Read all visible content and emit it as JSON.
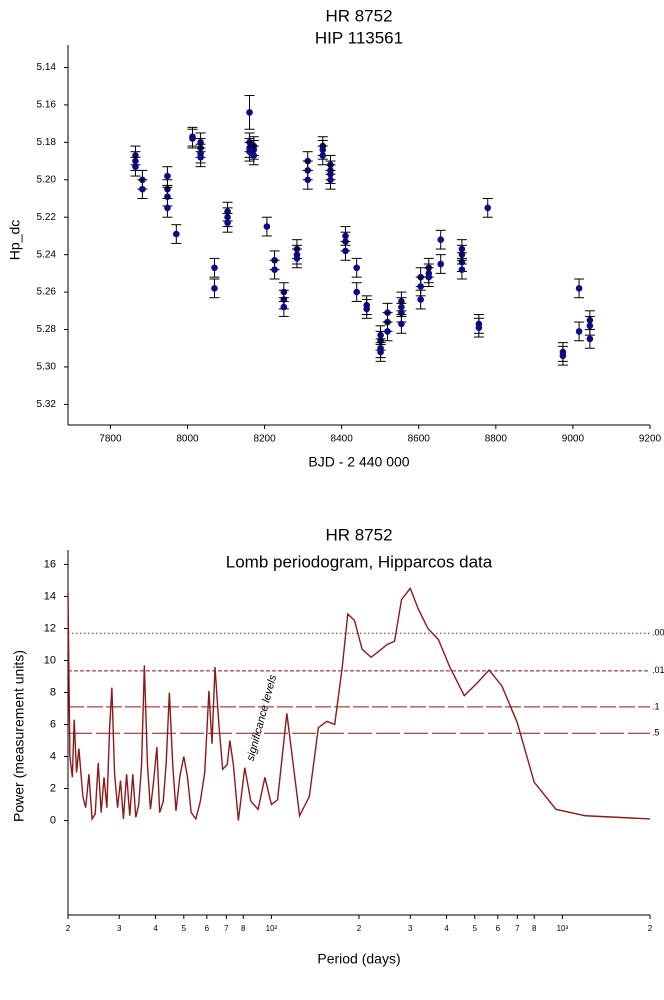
{
  "chart_data": [
    {
      "type": "scatter",
      "title": "HR 8752",
      "subtitle": "HIP 113561",
      "x_label": "BJD - 2 440 000",
      "y_label": "Hp_dc",
      "color": "#0b0b8a",
      "x": [
        7865,
        7865,
        7865,
        7883,
        7883,
        7948,
        7948,
        7948,
        7948,
        7971,
        8013,
        8013,
        8034,
        8034,
        8034,
        8034,
        8070,
        8070,
        8104,
        8104,
        8104,
        8161,
        8161,
        8161,
        8161,
        8172,
        8172,
        8172,
        8206,
        8226,
        8226,
        8250,
        8250,
        8250,
        8284,
        8284,
        8284,
        8312,
        8312,
        8312,
        8351,
        8351,
        8351,
        8371,
        8371,
        8371,
        8371,
        8410,
        8410,
        8410,
        8439,
        8439,
        8465,
        8465,
        8501,
        8501,
        8501,
        8501,
        8519,
        8519,
        8519,
        8555,
        8555,
        8555,
        8555,
        8605,
        8605,
        8605,
        8626,
        8626,
        8626,
        8657,
        8657,
        8712,
        8712,
        8712,
        8712,
        8756,
        8756,
        8779,
        8974,
        8974,
        9016,
        9016,
        9044,
        9044,
        9044
      ],
      "y": [
        5.187,
        5.19,
        5.193,
        5.2,
        5.205,
        5.198,
        5.205,
        5.209,
        5.215,
        5.229,
        5.177,
        5.178,
        5.18,
        5.183,
        5.186,
        5.188,
        5.247,
        5.258,
        5.217,
        5.22,
        5.223,
        5.164,
        5.18,
        5.183,
        5.185,
        5.182,
        5.184,
        5.187,
        5.225,
        5.243,
        5.248,
        5.26,
        5.264,
        5.268,
        5.237,
        5.24,
        5.242,
        5.19,
        5.195,
        5.2,
        5.182,
        5.184,
        5.187,
        5.192,
        5.195,
        5.197,
        5.2,
        5.23,
        5.233,
        5.238,
        5.247,
        5.26,
        5.267,
        5.269,
        5.283,
        5.286,
        5.29,
        5.292,
        5.271,
        5.276,
        5.281,
        5.265,
        5.268,
        5.271,
        5.277,
        5.252,
        5.257,
        5.264,
        5.247,
        5.25,
        5.252,
        5.232,
        5.245,
        5.237,
        5.24,
        5.244,
        5.248,
        5.277,
        5.279,
        5.215,
        5.292,
        5.294,
        5.258,
        5.281,
        5.275,
        5.278,
        5.285
      ],
      "errors": [
        0.005,
        0.005,
        0.005,
        0.005,
        0.005,
        0.005,
        0.005,
        0.005,
        0.005,
        0.005,
        0.005,
        0.005,
        0.005,
        0.005,
        0.005,
        0.005,
        0.005,
        0.005,
        0.005,
        0.005,
        0.005,
        0.009,
        0.005,
        0.005,
        0.005,
        0.005,
        0.005,
        0.005,
        0.005,
        0.005,
        0.005,
        0.005,
        0.005,
        0.005,
        0.005,
        0.005,
        0.005,
        0.005,
        0.005,
        0.005,
        0.005,
        0.005,
        0.005,
        0.005,
        0.005,
        0.005,
        0.005,
        0.005,
        0.005,
        0.005,
        0.005,
        0.005,
        0.005,
        0.005,
        0.005,
        0.005,
        0.005,
        0.005,
        0.005,
        0.005,
        0.005,
        0.005,
        0.005,
        0.005,
        0.005,
        0.005,
        0.005,
        0.005,
        0.005,
        0.005,
        0.005,
        0.005,
        0.005,
        0.005,
        0.005,
        0.005,
        0.005,
        0.005,
        0.005,
        0.005,
        0.005,
        0.005,
        0.005,
        0.005,
        0.005,
        0.005,
        0.005
      ],
      "xlim": [
        7690,
        9200
      ],
      "xticks": [
        7800,
        8000,
        8200,
        8400,
        8600,
        8800,
        9000,
        9200
      ],
      "ylim": [
        5.331,
        5.128
      ],
      "yticks": [
        5.14,
        5.16,
        5.18,
        {
          "value": 5.2,
          "label": "5.20"
        },
        5.22,
        5.24,
        5.26,
        5.28,
        {
          "value": 5.3,
          "label": "5.30"
        },
        5.32
      ]
    },
    {
      "type": "line",
      "title": "HR 8752",
      "subtitle": "Lomb periodogram, Hipparcos data",
      "x_label": "Period (days)",
      "y_label": "Power (measurement units)",
      "color": "#8b1a1a",
      "xscale": "log",
      "x": [
        20.0,
        20.3,
        20.7,
        21.0,
        21.4,
        21.8,
        22.5,
        23.0,
        23.6,
        24.2,
        24.8,
        25.4,
        26.0,
        26.6,
        27.2,
        27.8,
        28.3,
        28.9,
        29.6,
        30.3,
        31.0,
        31.8,
        32.6,
        33.4,
        34.2,
        35.0,
        35.8,
        36.6,
        37.5,
        38.4,
        39.4,
        40.4,
        41.3,
        42.5,
        43.5,
        44.6,
        45.8,
        47.0,
        48.5,
        50.0,
        51.5,
        53.0,
        55.0,
        57.0,
        59.0,
        61.0,
        62.5,
        64.0,
        66.0,
        68.0,
        70.5,
        72.0,
        74.0,
        77.0,
        81.0,
        85.0,
        90.0,
        95.0,
        100.0,
        105.0,
        113.0,
        125.0,
        135.0,
        145.0,
        155.0,
        165.0,
        175.0,
        183.0,
        193.0,
        205.0,
        220.0,
        235.0,
        250.0,
        265.0,
        280.0,
        300.0,
        320.0,
        345.0,
        375.0,
        410.0,
        460.0,
        510.0,
        560.0,
        620.0,
        700.0,
        800.0,
        950.0,
        1200.0,
        2000.0
      ],
      "values": [
        14.2,
        4.0,
        2.7,
        6.3,
        3.0,
        4.5,
        1.5,
        0.8,
        2.9,
        0.1,
        0.4,
        3.6,
        0.5,
        2.7,
        0.8,
        5.8,
        8.3,
        3.0,
        0.8,
        2.5,
        0.1,
        2.9,
        0.3,
        2.9,
        0.2,
        1.0,
        3.5,
        9.7,
        3.5,
        0.7,
        2.5,
        4.6,
        0.5,
        1.2,
        3.6,
        8.0,
        3.5,
        0.6,
        2.8,
        4.0,
        2.7,
        0.5,
        0.1,
        1.2,
        3.0,
        8.1,
        4.8,
        9.6,
        6.0,
        3.2,
        3.5,
        5.0,
        3.5,
        0.0,
        3.3,
        1.2,
        0.7,
        2.7,
        1.0,
        1.3,
        6.7,
        0.3,
        1.5,
        5.8,
        6.2,
        6.0,
        9.5,
        12.9,
        12.5,
        10.7,
        10.2,
        10.6,
        11.0,
        11.2,
        13.8,
        14.5,
        13.2,
        12.0,
        11.3,
        9.6,
        7.8,
        8.6,
        9.4,
        8.4,
        6.1,
        2.4,
        0.7,
        0.3,
        0.1
      ],
      "xlim": [
        20,
        2000
      ],
      "xticks": [
        {
          "value": 20,
          "label": "2"
        },
        {
          "value": 30,
          "label": "3"
        },
        {
          "value": 40,
          "label": "4"
        },
        {
          "value": 50,
          "label": "5"
        },
        {
          "value": 60,
          "label": "6"
        },
        {
          "value": 70,
          "label": "7"
        },
        {
          "value": 80,
          "label": "8"
        },
        {
          "value": 100,
          "label": "10²"
        },
        {
          "value": 200,
          "label": "2"
        },
        {
          "value": 300,
          "label": "3"
        },
        {
          "value": 400,
          "label": "4"
        },
        {
          "value": 500,
          "label": "5"
        },
        {
          "value": 600,
          "label": "6"
        },
        {
          "value": 700,
          "label": "7"
        },
        {
          "value": 800,
          "label": "8"
        },
        {
          "value": 1000,
          "label": "10³"
        },
        {
          "value": 2000,
          "label": "2"
        }
      ],
      "ylim": [
        -5.9,
        16.9
      ],
      "yticks": [
        0,
        2,
        4,
        6,
        8,
        10,
        12,
        14,
        16
      ],
      "levels": [
        {
          "value": 11.7,
          "label": ".00",
          "dash": "dotted"
        },
        {
          "value": 9.35,
          "label": ".01",
          "dash": "short"
        },
        {
          "value": 7.1,
          "label": ".1",
          "dash": "long"
        },
        {
          "value": 5.45,
          "label": ".5",
          "dash": "longer"
        }
      ],
      "annotation": "significance levels"
    }
  ]
}
